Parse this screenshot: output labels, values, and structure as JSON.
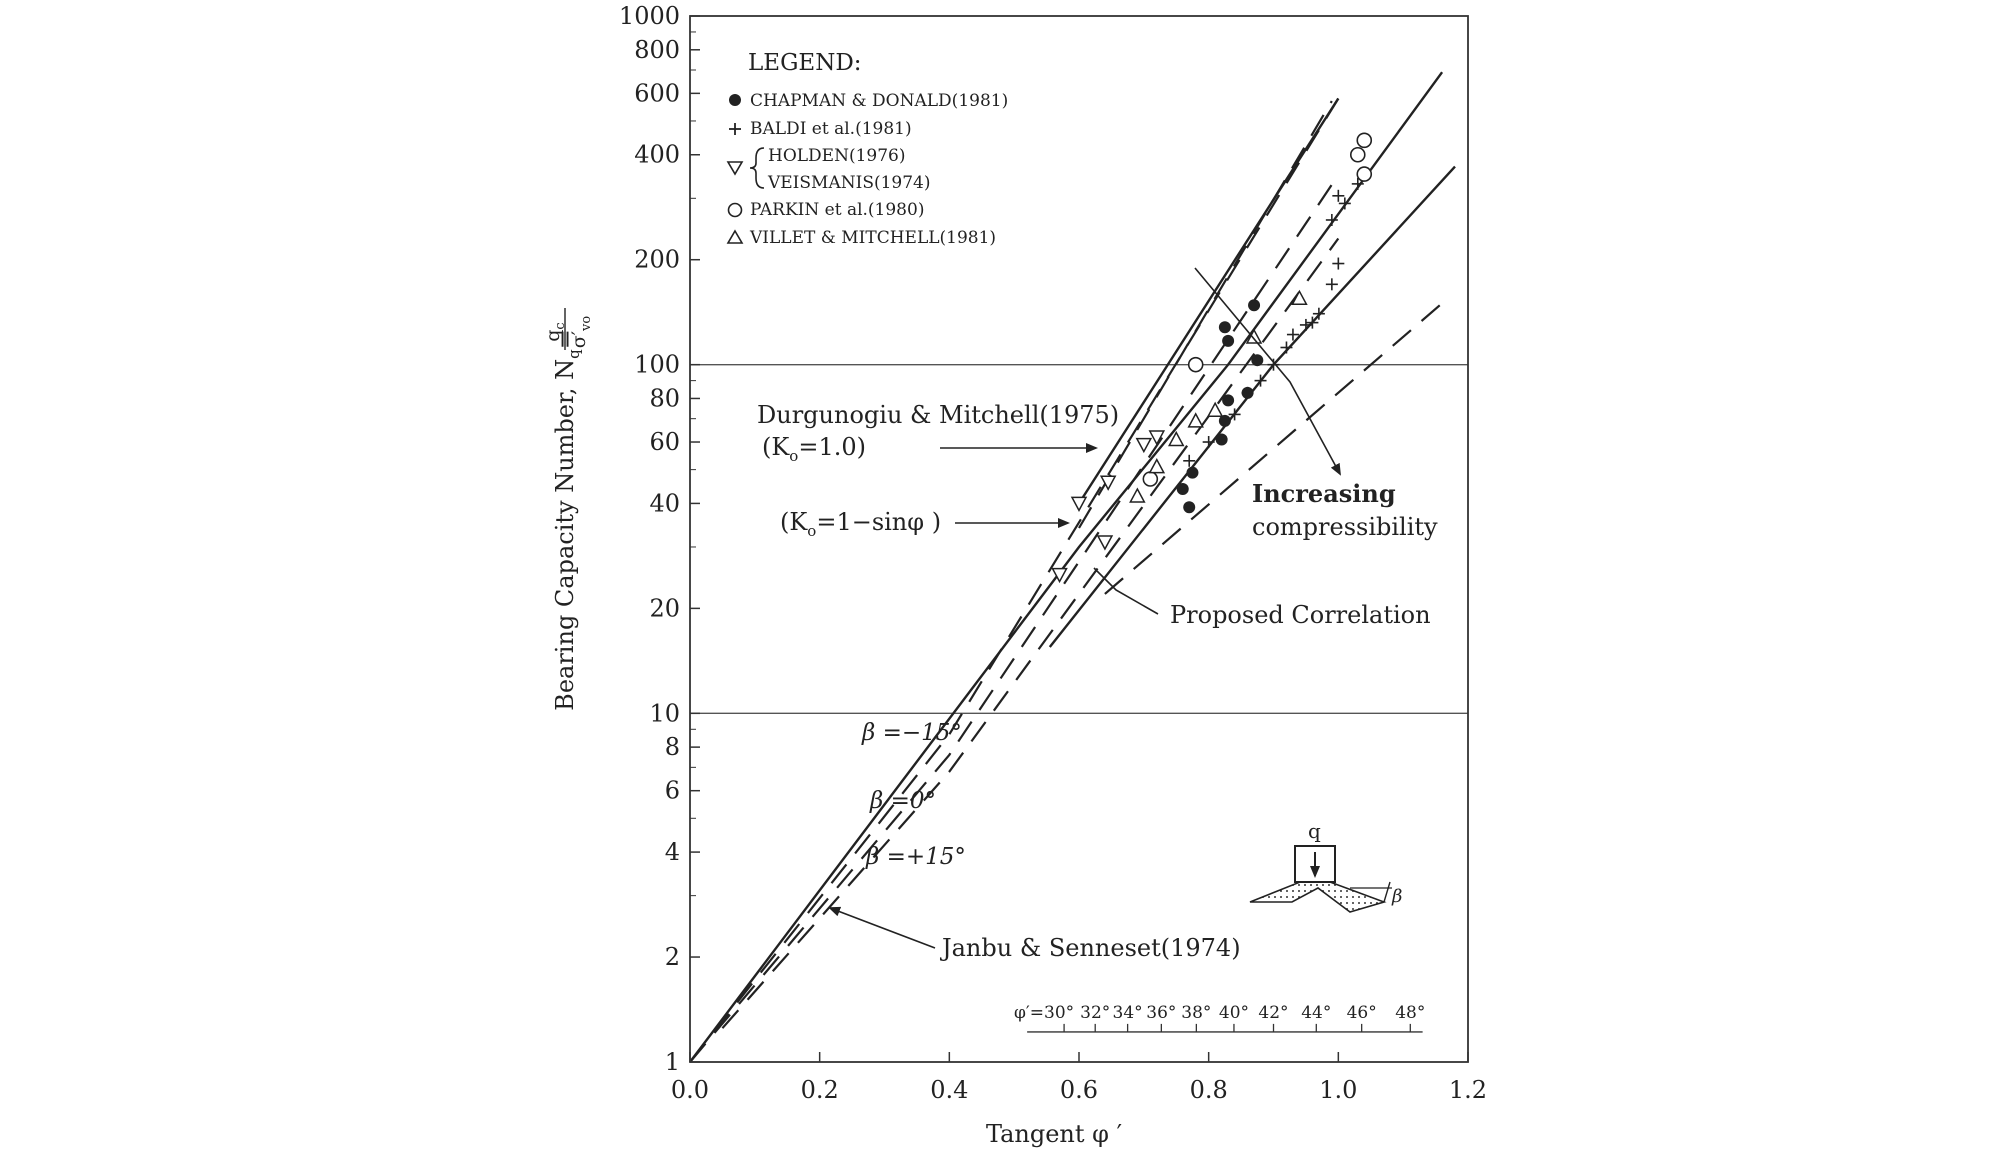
{
  "chart_data": {
    "type": "scatter",
    "xlabel": "Tangent φ ′",
    "ylabel": {
      "main": "Bearing Capacity Number, N",
      "sub": "q",
      "eq": "=",
      "num": "q",
      "num_sub": "c",
      "den": "σ′",
      "den_sub": "vo"
    },
    "x_scale": "linear",
    "y_scale": "log",
    "xlim": [
      0,
      1.2
    ],
    "ylim": [
      1,
      1000
    ],
    "x_ticks": [
      "0.0",
      "0.2",
      "0.4",
      "0.6",
      "0.8",
      "1.0",
      "1.2"
    ],
    "x_tick_values": [
      0,
      0.2,
      0.4,
      0.6,
      0.8,
      1.0,
      1.2
    ],
    "y_ticks": [
      "1",
      "2",
      "4",
      "6",
      "8",
      "10",
      "20",
      "40",
      "60",
      "80",
      "100",
      "200",
      "400",
      "600",
      "800",
      "1000"
    ],
    "y_tick_values": [
      1,
      2,
      4,
      6,
      8,
      10,
      20,
      40,
      60,
      80,
      100,
      200,
      400,
      600,
      800,
      1000
    ],
    "gridlines_y": [
      10,
      100
    ],
    "phi_scale": {
      "labels": [
        "φ′=30°",
        "32°",
        "34°",
        "36°",
        "38°",
        "40°",
        "42°",
        "44°",
        "46°",
        "48°"
      ],
      "tan_values": [
        0.577,
        0.625,
        0.675,
        0.727,
        0.781,
        0.839,
        0.9,
        0.966,
        1.036,
        1.111
      ],
      "y_value": 1.22
    },
    "legend": {
      "title": "LEGEND:",
      "entries": [
        {
          "marker": "filled-circle",
          "label": "CHAPMAN & DONALD(1981)"
        },
        {
          "marker": "plus",
          "label": "BALDI et al.(1981)"
        },
        {
          "marker": "triangle-down",
          "label": "HOLDEN(1976)",
          "label2": "VEISMANIS(1974)"
        },
        {
          "marker": "open-circle",
          "label": "PARKIN et al.(1980)"
        },
        {
          "marker": "triangle-up",
          "label": "VILLET & MITCHELL(1981)"
        }
      ]
    },
    "lines": [
      {
        "style": "dashed",
        "points": [
          [
            0.0,
            1.0
          ],
          [
            0.4,
            8.7
          ],
          [
            1.0,
            580
          ]
        ]
      },
      {
        "style": "dashed",
        "points": [
          [
            0.0,
            1.0
          ],
          [
            0.4,
            7.6
          ],
          [
            1.0,
            350
          ]
        ]
      },
      {
        "style": "dashed",
        "points": [
          [
            0.05,
            1.25
          ],
          [
            0.4,
            6.8
          ],
          [
            1.0,
            230
          ]
        ]
      },
      {
        "style": "dashed",
        "points": [
          [
            0.6,
            34
          ],
          [
            0.99,
            570
          ]
        ]
      },
      {
        "style": "dashed",
        "points": [
          [
            0.64,
            22
          ],
          [
            1.16,
            150
          ]
        ]
      },
      {
        "style": "solid",
        "points": [
          [
            0.0,
            1.0
          ],
          [
            0.6,
            30
          ],
          [
            0.83,
            100
          ],
          [
            1.16,
            690
          ]
        ]
      },
      {
        "style": "solid",
        "points": [
          [
            0.555,
            15.5
          ],
          [
            0.9,
            100
          ],
          [
            1.18,
            370
          ]
        ]
      },
      {
        "style": "solid",
        "points": [
          [
            0.6,
            40
          ],
          [
            1.0,
            580
          ]
        ]
      }
    ],
    "series": [
      {
        "name": "CHAPMAN & DONALD(1981)",
        "marker": "filled-circle",
        "points": [
          [
            0.76,
            44
          ],
          [
            0.77,
            39
          ],
          [
            0.775,
            49
          ],
          [
            0.82,
            61
          ],
          [
            0.825,
            69
          ],
          [
            0.83,
            79
          ],
          [
            0.86,
            83
          ],
          [
            0.875,
            103
          ],
          [
            0.825,
            128
          ],
          [
            0.83,
            117
          ],
          [
            0.87,
            148
          ]
        ]
      },
      {
        "name": "BALDI et al.(1981)",
        "marker": "plus",
        "points": [
          [
            0.77,
            53
          ],
          [
            0.8,
            60
          ],
          [
            0.84,
            72
          ],
          [
            0.86,
            83
          ],
          [
            0.88,
            90
          ],
          [
            0.9,
            100
          ],
          [
            0.92,
            112
          ],
          [
            0.93,
            122
          ],
          [
            0.95,
            130
          ],
          [
            0.96,
            132
          ],
          [
            0.97,
            140
          ],
          [
            0.99,
            170
          ],
          [
            1.0,
            195
          ],
          [
            0.99,
            260
          ],
          [
            1.0,
            305
          ],
          [
            1.01,
            290
          ],
          [
            1.03,
            330
          ]
        ]
      },
      {
        "name": "HOLDEN(1976) / VEISMANIS(1974)",
        "marker": "triangle-down",
        "points": [
          [
            0.57,
            25
          ],
          [
            0.6,
            40
          ],
          [
            0.64,
            31
          ],
          [
            0.645,
            46
          ],
          [
            0.7,
            59
          ],
          [
            0.72,
            62
          ]
        ]
      },
      {
        "name": "PARKIN et al.(1980)",
        "marker": "open-circle",
        "points": [
          [
            0.71,
            47
          ],
          [
            0.78,
            100
          ],
          [
            1.03,
            400
          ],
          [
            1.04,
            440
          ],
          [
            1.04,
            352
          ]
        ]
      },
      {
        "name": "VILLET & MITCHELL(1981)",
        "marker": "triangle-up",
        "points": [
          [
            0.69,
            42
          ],
          [
            0.72,
            51
          ],
          [
            0.75,
            61
          ],
          [
            0.78,
            69
          ],
          [
            0.81,
            74
          ],
          [
            0.87,
            120
          ],
          [
            0.94,
            155
          ]
        ]
      }
    ],
    "annotations": {
      "durgunoglu": "Durgunogiu & Mitchell(1975)",
      "k0_eq1": "(K",
      "k0_eq1_sub": "o",
      "k0_eq1_rest": "=1.0)",
      "k0_sin": "(K",
      "k0_sin_sub": "o",
      "k0_sin_rest": "=1−sinφ  )",
      "increasing1": "Increasing",
      "increasing2": "compressibility",
      "proposed": "Proposed Correlation",
      "beta_m15": "β =−15°",
      "beta_0": "β =0°",
      "beta_p15": "β =+15°",
      "janbu": "Janbu & Senneset(1974)",
      "footing_q": "q",
      "footing_beta": "β"
    }
  }
}
